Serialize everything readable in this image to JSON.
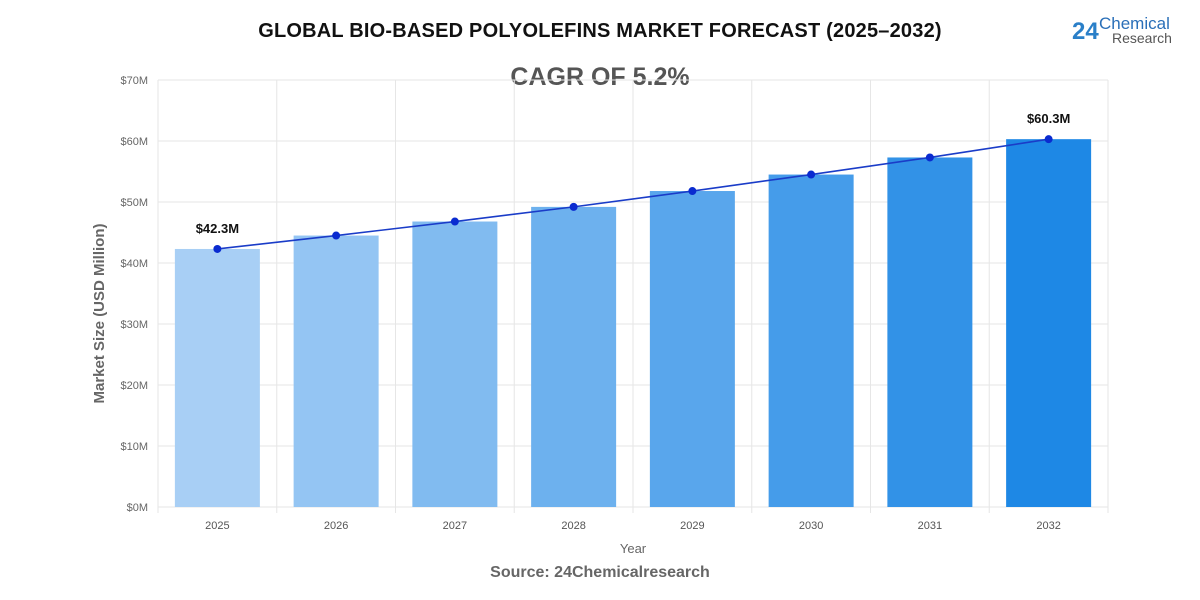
{
  "title": "GLOBAL BIO-BASED POLYOLEFINS MARKET FORECAST (2025–2032)",
  "subtitle": "CAGR OF 5.2%",
  "source": "Source: 24Chemicalresearch",
  "logo": {
    "number": "24",
    "line1": "Chemical",
    "line2": "Research"
  },
  "colors": {
    "bar_light": "#a8cff5",
    "bar_dark": "#1e88e5",
    "line": "#1a3cc8",
    "point": "#0a2bd0"
  },
  "chart_data": {
    "type": "bar",
    "categories": [
      "2025",
      "2026",
      "2027",
      "2028",
      "2029",
      "2030",
      "2031",
      "2032"
    ],
    "values": [
      42.3,
      44.5,
      46.8,
      49.2,
      51.8,
      54.5,
      57.3,
      60.3
    ],
    "overlay": "line",
    "xlabel": "Year",
    "ylabel": "Market Size (USD Million)",
    "ylim": [
      0,
      70
    ],
    "yticks": [
      "$0M",
      "$10M",
      "$20M",
      "$30M",
      "$40M",
      "$50M",
      "$60M",
      "$70M"
    ],
    "data_labels": [
      {
        "index": 0,
        "text": "$42.3M"
      },
      {
        "index": 7,
        "text": "$60.3M"
      }
    ],
    "grid": true
  }
}
